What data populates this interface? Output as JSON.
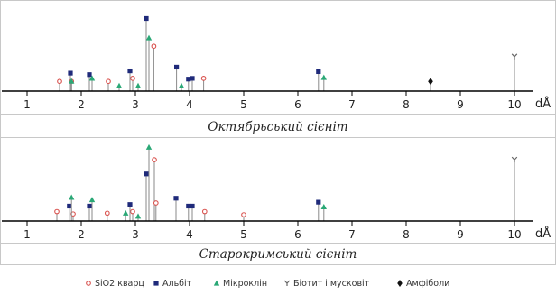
{
  "colors": {
    "quartz": "#d9534f",
    "albite": "#1f2a7a",
    "microcline": "#2aa876",
    "mica": "#666666",
    "amphibole": "#111111",
    "stem": "#8a8a8a"
  },
  "legend": [
    {
      "key": "quartz",
      "label": "SiO2 кварц",
      "marker": "open-circle"
    },
    {
      "key": "albite",
      "label": "Альбіт",
      "marker": "square"
    },
    {
      "key": "microcline",
      "label": "Мікроклін",
      "marker": "triangle"
    },
    {
      "key": "mica",
      "label": "Біотит і мусковіт",
      "marker": "y-mark"
    },
    {
      "key": "amphibole",
      "label": "Амфіболи",
      "marker": "diamond"
    }
  ],
  "chart_data": [
    {
      "type": "scatter",
      "title": "Октябрьський сієніт",
      "xlabel": "dÅ",
      "xlim": [
        1,
        10
      ],
      "x_ticks": [
        "1",
        "2",
        "3",
        "4",
        "5",
        "6",
        "7",
        "8",
        "9",
        "10"
      ],
      "grid": false,
      "series": [
        {
          "key": "quartz",
          "name": "SiO2 кварц",
          "points": [
            [
              1.6,
              0.13
            ],
            [
              1.82,
              0.13
            ],
            [
              2.5,
              0.13
            ],
            [
              2.95,
              0.17
            ],
            [
              3.34,
              0.6
            ],
            [
              4.26,
              0.17
            ]
          ]
        },
        {
          "key": "albite",
          "name": "Альбіт",
          "points": [
            [
              1.8,
              0.24
            ],
            [
              2.15,
              0.22
            ],
            [
              2.9,
              0.27
            ],
            [
              3.2,
              0.97
            ],
            [
              3.76,
              0.32
            ],
            [
              3.98,
              0.16
            ],
            [
              4.05,
              0.17
            ],
            [
              6.38,
              0.26
            ]
          ]
        },
        {
          "key": "microcline",
          "name": "Мікроклін",
          "points": [
            [
              1.82,
              0.13
            ],
            [
              2.2,
              0.17
            ],
            [
              2.7,
              0.07
            ],
            [
              3.05,
              0.07
            ],
            [
              3.25,
              0.71
            ],
            [
              3.85,
              0.07
            ],
            [
              6.48,
              0.18
            ]
          ]
        },
        {
          "key": "mica",
          "name": "Біотит і мусковіт",
          "points": [
            [
              10.0,
              0.46
            ]
          ]
        },
        {
          "key": "amphibole",
          "name": "Амфіболи",
          "points": [
            [
              8.45,
              0.13
            ]
          ]
        }
      ]
    },
    {
      "type": "scatter",
      "title": "Старокримський сієніт",
      "xlabel": "dÅ",
      "xlim": [
        1,
        10
      ],
      "x_ticks": [
        "1",
        "2",
        "3",
        "4",
        "5",
        "6",
        "7",
        "8",
        "9",
        "10"
      ],
      "grid": false,
      "series": [
        {
          "key": "quartz",
          "name": "SiO2 кварц",
          "points": [
            [
              1.55,
              0.12
            ],
            [
              1.85,
              0.09
            ],
            [
              2.48,
              0.1
            ],
            [
              2.95,
              0.12
            ],
            [
              3.35,
              0.78
            ],
            [
              3.38,
              0.23
            ],
            [
              4.28,
              0.12
            ],
            [
              5.0,
              0.08
            ]
          ]
        },
        {
          "key": "albite",
          "name": "Альбіт",
          "points": [
            [
              1.78,
              0.19
            ],
            [
              2.15,
              0.19
            ],
            [
              2.9,
              0.21
            ],
            [
              3.2,
              0.6
            ],
            [
              3.75,
              0.29
            ],
            [
              3.98,
              0.19
            ],
            [
              4.05,
              0.19
            ],
            [
              6.38,
              0.24
            ]
          ]
        },
        {
          "key": "microcline",
          "name": "Мікроклін",
          "points": [
            [
              1.82,
              0.3
            ],
            [
              2.2,
              0.27
            ],
            [
              2.82,
              0.1
            ],
            [
              3.05,
              0.06
            ],
            [
              3.25,
              0.94
            ],
            [
              6.48,
              0.18
            ]
          ]
        },
        {
          "key": "mica",
          "name": "Біотит і мусковіт",
          "points": [
            [
              10.0,
              0.78
            ]
          ]
        },
        {
          "key": "amphibole",
          "name": "Амфіболи",
          "points": []
        }
      ]
    }
  ]
}
